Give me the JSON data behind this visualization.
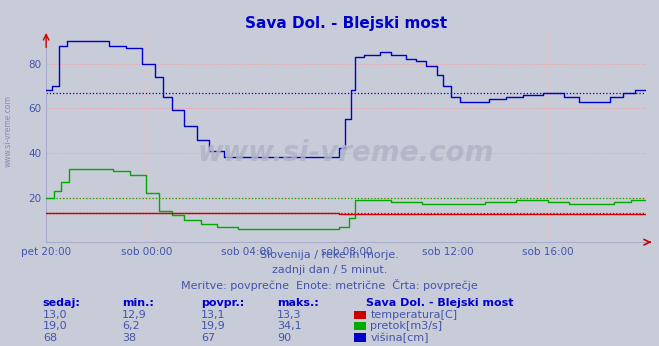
{
  "title": "Sava Dol. - Blejski most",
  "title_color": "#0000cc",
  "bg_color": "#c8ccd8",
  "plot_bg_color": "#c8ccd8",
  "watermark": "www.si-vreme.com",
  "subtitle1": "Slovenija / reke in morje.",
  "subtitle2": "zadnji dan / 5 minut.",
  "subtitle3": "Meritve: povprečne  Enote: metrične  Črta: povprečje",
  "xticklabels": [
    "pet 20:00",
    "sob 00:00",
    "sob 04:00",
    "sob 08:00",
    "sob 12:00",
    "sob 16:00"
  ],
  "xtick_positions": [
    0,
    48,
    96,
    144,
    192,
    240
  ],
  "ylim_max": 93,
  "yticks": [
    20,
    40,
    60,
    80
  ],
  "total_points": 288,
  "avg_temp": 13.1,
  "avg_pretok": 19.9,
  "avg_visina": 67,
  "color_temp": "#cc0000",
  "color_pretok": "#00aa00",
  "color_visina": "#0000cc",
  "legend_title": "Sava Dol. - Blejski most",
  "table_headers": [
    "sedaj:",
    "min.:",
    "povpr.:",
    "maks.:"
  ],
  "table_row1": [
    "13,0",
    "12,9",
    "13,1",
    "13,3",
    "temperatura[C]"
  ],
  "table_row2": [
    "19,0",
    "6,2",
    "19,9",
    "34,1",
    "pretok[m3/s]"
  ],
  "table_row3": [
    "68",
    "38",
    "67",
    "90",
    "višina[cm]"
  ],
  "watermark_color": "#b0b4c8",
  "tick_label_color": "#4455aa",
  "hgrid_color": "#ff9999",
  "vgrid_color": "#ffbbbb"
}
